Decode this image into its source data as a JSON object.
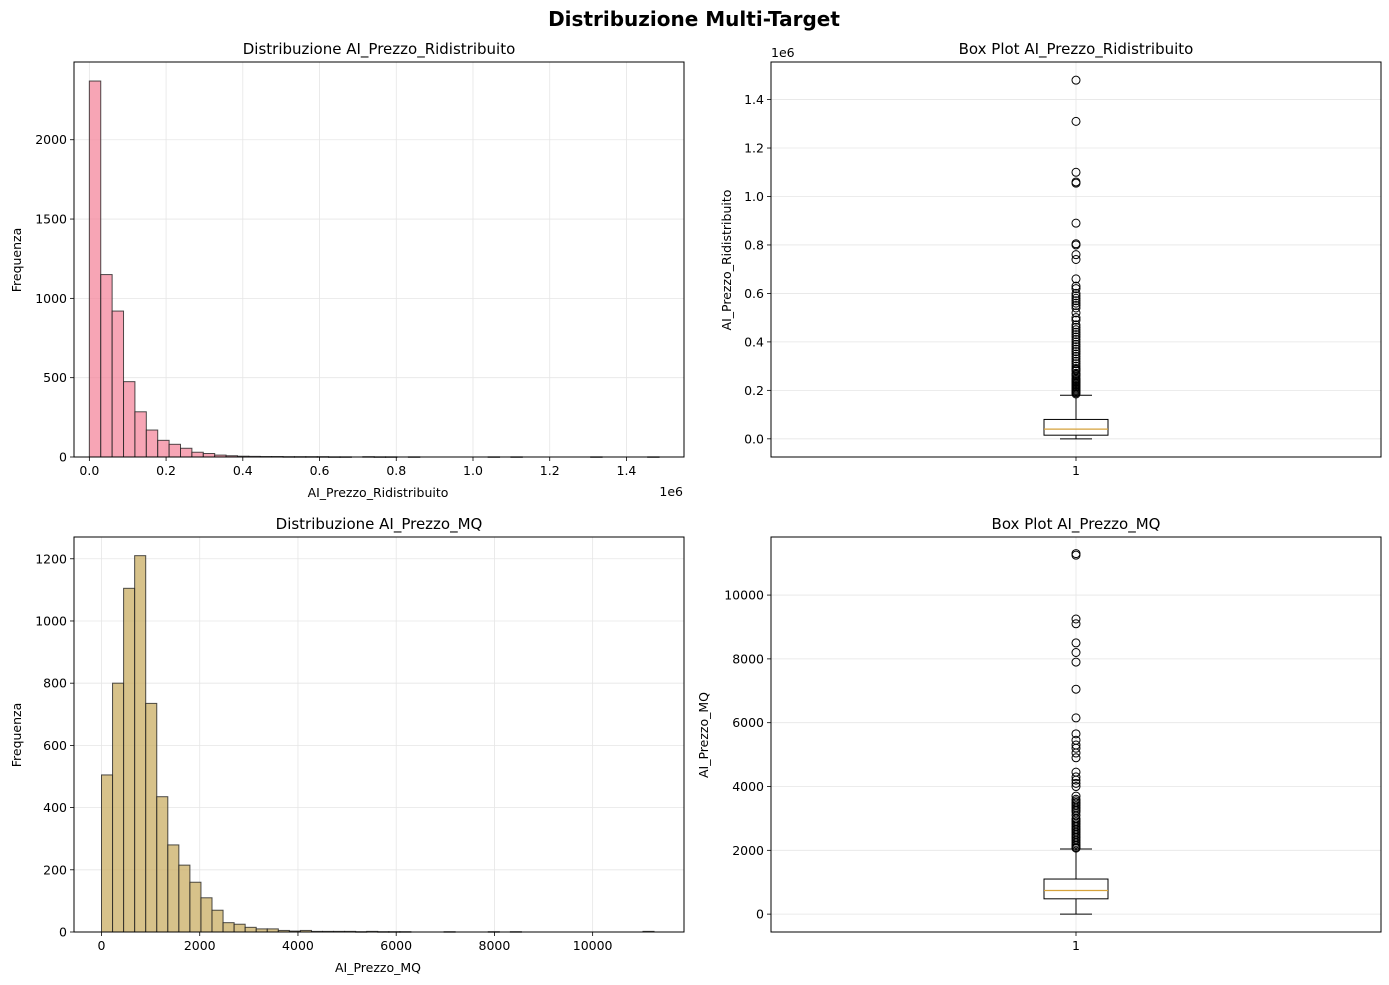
{
  "figure": {
    "title": "Distribuzione Multi-Target"
  },
  "chart_data": [
    {
      "type": "bar",
      "subtype": "histogram",
      "title": "Distribuzione AI_Prezzo_Ridistribuito",
      "xlabel": "AI_Prezzo_Ridistribuito",
      "ylabel": "Frequenza",
      "x_offset_label": "1e6",
      "x_scale": 1000000,
      "xlim": [
        -0.04,
        1.55
      ],
      "ylim": [
        0,
        2490
      ],
      "x_ticks": [
        0.0,
        0.2,
        0.4,
        0.6,
        0.8,
        1.0,
        1.2,
        1.4
      ],
      "x_tick_labels": [
        "0.0",
        "0.2",
        "0.4",
        "0.6",
        "0.8",
        "1.0",
        "1.2",
        "1.4"
      ],
      "y_ticks": [
        0,
        500,
        1000,
        1500,
        2000
      ],
      "y_tick_labels": [
        "0",
        "500",
        "1000",
        "1500",
        "2000"
      ],
      "bin_start": 0.0,
      "bin_width": 0.0297,
      "counts": [
        2370,
        1150,
        920,
        475,
        285,
        170,
        105,
        80,
        55,
        30,
        22,
        12,
        8,
        5,
        4,
        3,
        3,
        2,
        2,
        2,
        2,
        1,
        1,
        0,
        2,
        1,
        1,
        0,
        1,
        0,
        0,
        0,
        0,
        0,
        0,
        1,
        0,
        1,
        0,
        0,
        0,
        0,
        0,
        0,
        1,
        0,
        0,
        0,
        0,
        1
      ],
      "color": "#f4879c",
      "grid": true
    },
    {
      "type": "box",
      "title": "Box Plot AI_Prezzo_Ridistribuito",
      "ylabel": "AI_Prezzo_Ridistribuito",
      "y_offset_label": "1e6",
      "y_scale": 1000000,
      "ylim": [
        -0.075,
        1.555
      ],
      "y_ticks": [
        0.0,
        0.2,
        0.4,
        0.6,
        0.8,
        1.0,
        1.2,
        1.4
      ],
      "y_tick_labels": [
        "0.0",
        "0.2",
        "0.4",
        "0.6",
        "0.8",
        "1.0",
        "1.2",
        "1.4"
      ],
      "categories": [
        "1"
      ],
      "q1": 0.015,
      "median": 0.04,
      "q3": 0.08,
      "whisker_low": 0.0,
      "whisker_high": 0.18,
      "outliers": [
        1.48,
        1.31,
        1.1,
        1.06,
        1.055,
        0.89,
        0.8,
        0.805,
        0.76,
        0.74,
        0.66,
        0.63,
        0.62,
        0.6,
        0.59,
        0.58,
        0.57,
        0.56,
        0.55,
        0.54,
        0.52,
        0.5,
        0.49,
        0.47,
        0.46,
        0.45,
        0.44,
        0.43,
        0.42,
        0.41,
        0.4,
        0.39,
        0.38,
        0.37,
        0.36,
        0.35,
        0.34,
        0.33,
        0.32,
        0.31,
        0.3,
        0.29,
        0.285,
        0.28,
        0.27,
        0.265,
        0.26,
        0.25,
        0.245,
        0.24,
        0.235,
        0.23,
        0.225,
        0.22,
        0.215,
        0.21,
        0.205,
        0.2,
        0.195,
        0.19,
        0.185
      ],
      "median_color": "#d6a23b",
      "grid": true
    },
    {
      "type": "bar",
      "subtype": "histogram",
      "title": "Distribuzione AI_Prezzo_MQ",
      "xlabel": "AI_Prezzo_MQ",
      "ylabel": "Frequenza",
      "xlim": [
        -560,
        11860
      ],
      "ylim": [
        0,
        1270
      ],
      "x_ticks": [
        0,
        2000,
        4000,
        6000,
        8000,
        10000
      ],
      "x_tick_labels": [
        "0",
        "2000",
        "4000",
        "6000",
        "8000",
        "10000"
      ],
      "y_ticks": [
        0,
        200,
        400,
        600,
        800,
        1000,
        1200
      ],
      "y_tick_labels": [
        "0",
        "200",
        "400",
        "600",
        "800",
        "1000",
        "1200"
      ],
      "bin_start": 0,
      "bin_width": 225,
      "counts": [
        505,
        800,
        1105,
        1210,
        735,
        435,
        280,
        215,
        160,
        110,
        70,
        30,
        25,
        15,
        10,
        10,
        5,
        3,
        5,
        2,
        2,
        2,
        2,
        1,
        2,
        1,
        1,
        1,
        0,
        0,
        0,
        1,
        0,
        0,
        0,
        1,
        0,
        1,
        0,
        0,
        0,
        0,
        0,
        0,
        0,
        0,
        0,
        0,
        0,
        2
      ],
      "color": "#c9ad63",
      "grid": true
    },
    {
      "type": "box",
      "title": "Box Plot AI_Prezzo_MQ",
      "ylabel": "AI_Prezzo_MQ",
      "ylim": [
        -560,
        11820
      ],
      "y_ticks": [
        0,
        2000,
        4000,
        6000,
        8000,
        10000
      ],
      "y_tick_labels": [
        "0",
        "2000",
        "4000",
        "6000",
        "8000",
        "10000"
      ],
      "categories": [
        "1"
      ],
      "q1": 480,
      "median": 740,
      "q3": 1100,
      "whisker_low": 0,
      "whisker_high": 2040,
      "outliers": [
        11300,
        11250,
        9250,
        9100,
        8500,
        8200,
        7900,
        7050,
        6150,
        5650,
        5450,
        5300,
        5200,
        5050,
        4900,
        4450,
        4300,
        4200,
        4100,
        4000,
        3700,
        3600,
        3550,
        3500,
        3450,
        3400,
        3350,
        3300,
        3250,
        3200,
        3100,
        3000,
        2950,
        2900,
        2850,
        2800,
        2750,
        2700,
        2650,
        2600,
        2550,
        2500,
        2450,
        2400,
        2350,
        2300,
        2250,
        2200,
        2150,
        2100,
        2070
      ],
      "median_color": "#d6a23b",
      "grid": true
    }
  ]
}
